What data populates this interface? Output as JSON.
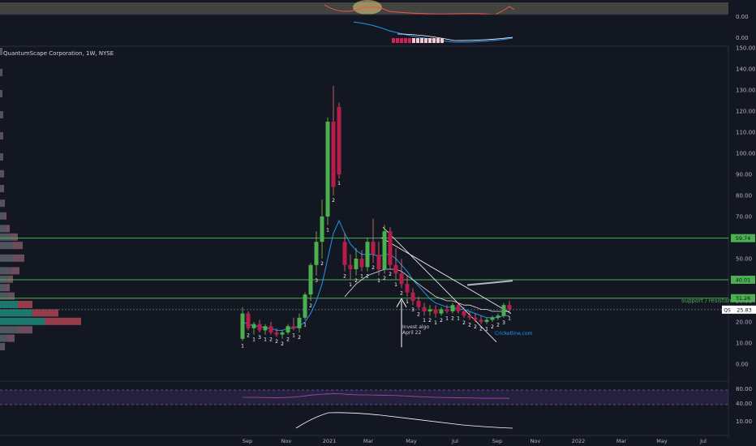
{
  "chart_title": "QuantumScape Corporation, 1W, NYSE",
  "colors": {
    "bg": "#131722",
    "up": "#26a69a",
    "up_body": "#4caf50",
    "down": "#ef5350",
    "down_body": "#b71c4a",
    "green_line": "#4caf50",
    "ema": "#2196f3",
    "axis_text": "#b2b5be",
    "grid": "#1e222d",
    "rsi_band": "#7e57c2",
    "trend": "#ffffff"
  },
  "top_panel": {
    "labels": [
      "0.00",
      "0.00"
    ]
  },
  "price_axis": {
    "ticks": [
      "150.00",
      "140.00",
      "130.00",
      "120.00",
      "110.00",
      "100.00",
      "90.00",
      "80.00",
      "70.00",
      "60.00",
      "50.00",
      "40.00",
      "30.00",
      "20.00",
      "10.00",
      "0.00"
    ]
  },
  "rsi_axis": {
    "ticks": [
      "80.00",
      "40.00",
      "10.00"
    ]
  },
  "time_axis": {
    "labels": [
      "Sep",
      "Nov",
      "2021",
      "Mar",
      "May",
      "Jul",
      "Sep",
      "Nov",
      "2022",
      "Mar",
      "May",
      "Jul"
    ]
  },
  "levels": [
    {
      "price": 59.74,
      "label": "59.74"
    },
    {
      "price": 40.01,
      "label": "40.01"
    },
    {
      "price": 31.26,
      "label": "31.26"
    }
  ],
  "support_text": "support / resistance",
  "current": {
    "symbol": "QS",
    "price": 25.83,
    "label": "25.83"
  },
  "annotations": {
    "invest_line1": "Invest algo",
    "invest_line2": "April 22",
    "watermark": "Cricketline.com"
  },
  "chart_data": {
    "type": "candlestick",
    "title": "QuantumScape Corporation, 1W, NYSE",
    "ylim": [
      0,
      150
    ],
    "candles": [
      {
        "o": 12,
        "h": 27,
        "l": 11,
        "c": 24
      },
      {
        "o": 24,
        "h": 25,
        "l": 16,
        "c": 17
      },
      {
        "o": 17,
        "h": 20,
        "l": 14,
        "c": 19
      },
      {
        "o": 19,
        "h": 21,
        "l": 15,
        "c": 16
      },
      {
        "o": 16,
        "h": 19,
        "l": 14,
        "c": 18
      },
      {
        "o": 18,
        "h": 20,
        "l": 14,
        "c": 15
      },
      {
        "o": 15,
        "h": 17,
        "l": 13,
        "c": 14
      },
      {
        "o": 14,
        "h": 16,
        "l": 12,
        "c": 15
      },
      {
        "o": 15,
        "h": 19,
        "l": 14,
        "c": 18
      },
      {
        "o": 18,
        "h": 22,
        "l": 16,
        "c": 17
      },
      {
        "o": 17,
        "h": 24,
        "l": 15,
        "c": 22
      },
      {
        "o": 22,
        "h": 34,
        "l": 21,
        "c": 33
      },
      {
        "o": 33,
        "h": 48,
        "l": 30,
        "c": 47
      },
      {
        "o": 47,
        "h": 63,
        "l": 42,
        "c": 58
      },
      {
        "o": 58,
        "h": 78,
        "l": 50,
        "c": 70
      },
      {
        "o": 70,
        "h": 117,
        "l": 66,
        "c": 115
      },
      {
        "o": 115,
        "h": 132,
        "l": 80,
        "c": 84
      },
      {
        "o": 122,
        "h": 124,
        "l": 88,
        "c": 90
      },
      {
        "o": 58,
        "h": 62,
        "l": 44,
        "c": 47
      },
      {
        "o": 47,
        "h": 52,
        "l": 40,
        "c": 45
      },
      {
        "o": 45,
        "h": 55,
        "l": 42,
        "c": 50
      },
      {
        "o": 50,
        "h": 54,
        "l": 44,
        "c": 46
      },
      {
        "o": 46,
        "h": 60,
        "l": 44,
        "c": 58
      },
      {
        "o": 58,
        "h": 69,
        "l": 48,
        "c": 52
      },
      {
        "o": 52,
        "h": 58,
        "l": 42,
        "c": 45
      },
      {
        "o": 45,
        "h": 66,
        "l": 43,
        "c": 63
      },
      {
        "o": 63,
        "h": 65,
        "l": 45,
        "c": 47
      },
      {
        "o": 47,
        "h": 55,
        "l": 40,
        "c": 43
      },
      {
        "o": 43,
        "h": 50,
        "l": 36,
        "c": 38
      },
      {
        "o": 38,
        "h": 42,
        "l": 32,
        "c": 34
      },
      {
        "o": 34,
        "h": 36,
        "l": 28,
        "c": 30
      },
      {
        "o": 30,
        "h": 32,
        "l": 26,
        "c": 27
      },
      {
        "o": 27,
        "h": 29,
        "l": 23,
        "c": 25
      },
      {
        "o": 25,
        "h": 28,
        "l": 23,
        "c": 26
      },
      {
        "o": 26,
        "h": 28,
        "l": 22,
        "c": 24
      },
      {
        "o": 24,
        "h": 27,
        "l": 23,
        "c": 26
      },
      {
        "o": 26,
        "h": 28,
        "l": 24,
        "c": 25
      },
      {
        "o": 25,
        "h": 29,
        "l": 24,
        "c": 28
      },
      {
        "o": 28,
        "h": 29,
        "l": 24,
        "c": 25
      },
      {
        "o": 25,
        "h": 27,
        "l": 22,
        "c": 23
      },
      {
        "o": 23,
        "h": 25,
        "l": 21,
        "c": 22
      },
      {
        "o": 22,
        "h": 24,
        "l": 20,
        "c": 21
      },
      {
        "o": 21,
        "h": 23,
        "l": 19,
        "c": 20
      },
      {
        "o": 20,
        "h": 22,
        "l": 19,
        "c": 21
      },
      {
        "o": 21,
        "h": 23,
        "l": 20,
        "c": 22
      },
      {
        "o": 22,
        "h": 24,
        "l": 21,
        "c": 23
      },
      {
        "o": 23,
        "h": 29,
        "l": 22,
        "c": 28
      },
      {
        "o": 28,
        "h": 30,
        "l": 24,
        "c": 26
      }
    ],
    "ema": [
      20,
      19,
      18,
      18,
      17,
      17,
      16,
      16,
      17,
      17,
      18,
      20,
      24,
      30,
      38,
      50,
      62,
      68,
      62,
      57,
      54,
      52,
      52,
      52,
      51,
      52,
      52,
      50,
      47,
      44,
      40,
      37,
      34,
      31,
      29,
      28,
      27,
      27,
      26,
      26,
      25,
      24,
      23,
      22,
      22,
      22,
      23,
      23
    ],
    "sma": [
      null,
      null,
      null,
      null,
      null,
      null,
      null,
      null,
      null,
      null,
      null,
      null,
      null,
      null,
      null,
      null,
      null,
      null,
      32,
      35,
      38,
      40,
      42,
      43,
      44,
      45,
      45,
      45,
      44,
      42,
      40,
      38,
      36,
      34,
      32,
      31,
      30,
      30,
      29,
      28,
      28,
      27,
      26,
      26,
      25,
      25,
      25,
      25
    ],
    "labels": [
      "1",
      "2",
      "1",
      "3",
      "1",
      "2",
      "2",
      "2",
      "2",
      "1",
      "2",
      "1",
      "2",
      "3",
      "2",
      "1",
      "2",
      "1",
      "2",
      "1",
      "2",
      "1",
      "2",
      "2",
      "1",
      "2",
      "2",
      "1",
      "2",
      "1",
      "3",
      "2",
      "1",
      "2",
      "1",
      "2",
      "1",
      "2",
      "1",
      "2",
      "2",
      "2",
      "2",
      "1",
      "2",
      "2",
      "3",
      "1"
    ],
    "rsi": [
      50,
      50,
      50,
      49,
      48,
      48,
      47,
      48,
      50,
      52,
      56,
      62,
      68,
      72,
      76,
      78,
      80,
      79,
      76,
      73,
      71,
      70,
      70,
      69,
      68,
      67,
      66,
      65,
      63,
      61,
      58,
      56,
      54,
      52,
      50,
      49,
      48,
      48,
      47,
      46,
      45,
      44,
      43,
      43,
      43,
      43,
      43,
      42
    ],
    "levels": [
      59.74,
      40.01,
      31.26
    ]
  }
}
